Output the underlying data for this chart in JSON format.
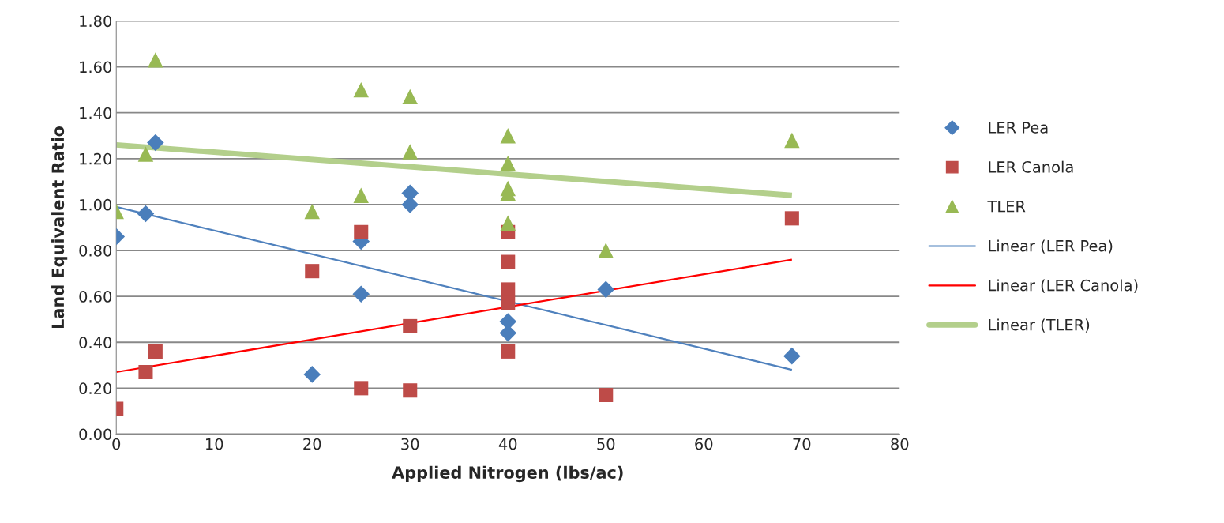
{
  "chart_data": {
    "type": "scatter",
    "xlabel": "Applied Nitrogen (lbs/ac)",
    "ylabel": "Land Equivalent Ratio",
    "xlim": [
      0,
      80
    ],
    "xticks": [
      0,
      10,
      20,
      30,
      40,
      50,
      60,
      70,
      80
    ],
    "ylim": [
      0,
      1.8
    ],
    "yticks": [
      {
        "value": 0,
        "label": "0.00"
      },
      {
        "value": 0.2,
        "label": "0.20"
      },
      {
        "value": 0.4,
        "label": "0.40"
      },
      {
        "value": 0.6,
        "label": "0.60"
      },
      {
        "value": 0.8,
        "label": "0.80"
      },
      {
        "value": 1.0,
        "label": "1.00"
      },
      {
        "value": 1.2,
        "label": "1.20"
      },
      {
        "value": 1.4,
        "label": "1.40"
      },
      {
        "value": 1.6,
        "label": "1.60"
      },
      {
        "value": 1.8,
        "label": "1.80"
      }
    ],
    "grid": "y",
    "legend": "right",
    "series": [
      {
        "name": "LER Pea",
        "marker": "diamond",
        "color": "#4a7ebb",
        "x": [
          0,
          3,
          4,
          20,
          25,
          25,
          30,
          30,
          40,
          40,
          50,
          69
        ],
        "values": [
          0.86,
          0.96,
          1.27,
          0.26,
          0.84,
          0.61,
          1.05,
          1.0,
          0.49,
          0.44,
          0.63,
          0.34
        ]
      },
      {
        "name": "LER Canola",
        "marker": "square",
        "color": "#be4b48",
        "x": [
          0,
          3,
          4,
          20,
          25,
          25,
          30,
          30,
          40,
          40,
          40,
          40,
          40,
          50,
          69
        ],
        "values": [
          0.11,
          0.27,
          0.36,
          0.71,
          0.88,
          0.2,
          0.47,
          0.19,
          0.88,
          0.75,
          0.63,
          0.57,
          0.36,
          0.17,
          0.94
        ]
      },
      {
        "name": "TLER",
        "marker": "triangle",
        "color": "#98b954",
        "x": [
          0,
          3,
          4,
          20,
          25,
          25,
          30,
          30,
          40,
          40,
          40,
          40,
          40,
          50,
          69
        ],
        "values": [
          0.97,
          1.22,
          1.63,
          0.97,
          1.04,
          1.5,
          1.47,
          1.23,
          1.3,
          1.18,
          1.07,
          1.05,
          0.92,
          0.8,
          1.28
        ]
      },
      {
        "name": "Linear (LER Pea)",
        "type": "line",
        "marker": "none",
        "line_style": "solid",
        "color": "#4f81bd",
        "x": [
          0,
          69
        ],
        "values": [
          0.99,
          0.28
        ]
      },
      {
        "name": "Linear (LER Canola)",
        "type": "line",
        "marker": "none",
        "line_style": "solid",
        "color": "#ff0000",
        "x": [
          0,
          69
        ],
        "values": [
          0.27,
          0.76
        ]
      },
      {
        "name": "Linear (TLER)",
        "type": "line",
        "marker": "none",
        "line_style": "solid",
        "color": "#b3cf8b",
        "x": [
          0,
          69
        ],
        "values": [
          1.26,
          1.04
        ]
      }
    ]
  }
}
